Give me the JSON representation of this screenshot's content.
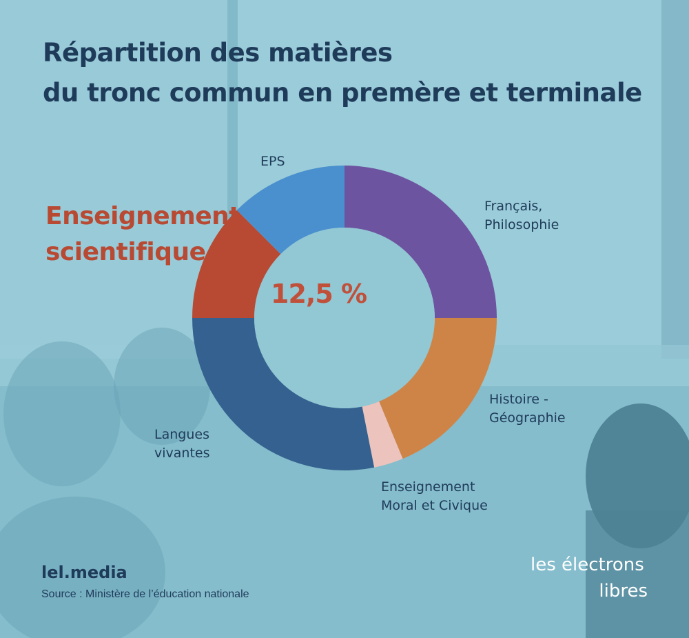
{
  "header": {
    "title_line1": "Répartition des matières",
    "title_line2": "du tronc commun en premère et terminale"
  },
  "highlight": {
    "label_line1": "Enseignement",
    "label_line2": "scientifique",
    "value": "12,5 %"
  },
  "labels": {
    "eps": "EPS",
    "francais_line1": "Français,",
    "francais_line2": "Philosophie",
    "histoire_line1": "Histoire -",
    "histoire_line2": "Géographie",
    "emc_line1": "Enseignement",
    "emc_line2": "Moral et Civique",
    "langues_line1": "Langues",
    "langues_line2": "vivantes"
  },
  "footer": {
    "brand": "lel.media",
    "source": "Source : Ministère de l’éducation nationale",
    "logo_line1": "les électrons",
    "logo_line2": "libres"
  },
  "colors": {
    "francais": "#6d54a0",
    "histoire": "#cf8447",
    "emc": "#ecc3bd",
    "langues": "#34618f",
    "scientifique": "#b84a33",
    "eps": "#4a8fce",
    "title": "#1f3b5a",
    "highlight": "#c0503a"
  },
  "chart_data": {
    "type": "pie",
    "variant": "donut",
    "start": "top",
    "direction": "clockwise",
    "slices": [
      {
        "label": "Français, Philosophie",
        "value": 25.0,
        "color": "#6d54a0"
      },
      {
        "label": "Histoire - Géographie",
        "value": 18.75,
        "color": "#cf8447"
      },
      {
        "label": "Enseignement Moral et Civique",
        "value": 3.125,
        "color": "#ecc3bd"
      },
      {
        "label": "Langues vivantes",
        "value": 28.125,
        "color": "#34618f"
      },
      {
        "label": "Enseignement scientifique",
        "value": 12.5,
        "color": "#b84a33"
      },
      {
        "label": "EPS",
        "value": 12.5,
        "color": "#4a8fce"
      }
    ]
  }
}
